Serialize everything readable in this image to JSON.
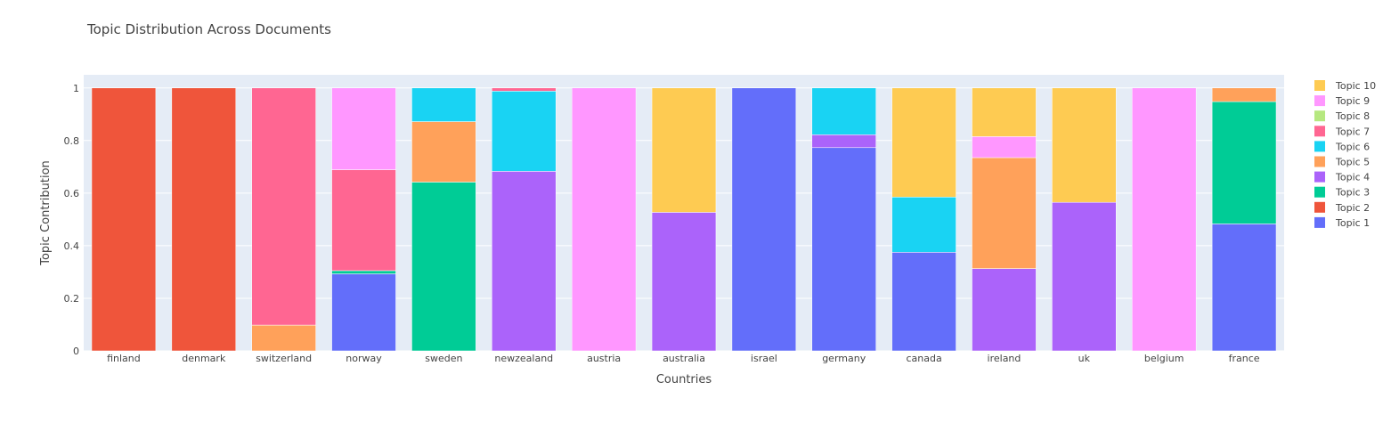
{
  "chart_data": {
    "type": "bar",
    "barmode": "stack",
    "title": "Topic Distribution Across Documents",
    "xlabel": "Countries",
    "ylabel": "Topic Contribution",
    "ylim": [
      0,
      1.05
    ],
    "y_ticks": [
      0,
      0.2,
      0.4,
      0.6,
      0.8,
      1
    ],
    "y_tick_labels": [
      "0",
      "0.2",
      "0.4",
      "0.6",
      "0.8",
      "1"
    ],
    "grid": true,
    "legend_position": "top-right",
    "categories": [
      "finland",
      "denmark",
      "switzerland",
      "norway",
      "sweden",
      "newzealand",
      "austria",
      "australia",
      "israel",
      "germany",
      "canada",
      "ireland",
      "uk",
      "belgium",
      "france"
    ],
    "series": [
      {
        "name": "Topic 1",
        "color": "#636efa",
        "values": [
          0,
          0,
          0,
          0.293,
          0,
          0,
          0,
          0,
          1.0,
          0.773,
          0.375,
          0,
          0,
          0,
          0.483
        ]
      },
      {
        "name": "Topic 2",
        "color": "#ef553b",
        "values": [
          1.0,
          1.0,
          0,
          0,
          0,
          0,
          0,
          0,
          0,
          0,
          0,
          0,
          0,
          0,
          0
        ]
      },
      {
        "name": "Topic 3",
        "color": "#00cc96",
        "values": [
          0,
          0,
          0,
          0.012,
          0.642,
          0,
          0,
          0,
          0,
          0,
          0,
          0,
          0,
          0,
          0.465
        ]
      },
      {
        "name": "Topic 4",
        "color": "#ab63fa",
        "values": [
          0,
          0,
          0,
          0,
          0,
          0.683,
          0,
          0.527,
          0,
          0.049,
          0,
          0.313,
          0.565,
          0,
          0
        ]
      },
      {
        "name": "Topic 5",
        "color": "#ffa15a",
        "values": [
          0,
          0,
          0.098,
          0,
          0.23,
          0,
          0,
          0,
          0,
          0,
          0,
          0.422,
          0,
          0,
          0.052
        ]
      },
      {
        "name": "Topic 6",
        "color": "#19d3f3",
        "values": [
          0,
          0,
          0,
          0,
          0.128,
          0.305,
          0,
          0,
          0,
          0.178,
          0.21,
          0,
          0,
          0,
          0
        ]
      },
      {
        "name": "Topic 7",
        "color": "#ff6692",
        "values": [
          0,
          0,
          0.902,
          0.384,
          0,
          0.012,
          0,
          0,
          0,
          0,
          0,
          0,
          0,
          0,
          0
        ]
      },
      {
        "name": "Topic 8",
        "color": "#b6e880",
        "values": [
          0,
          0,
          0,
          0,
          0,
          0,
          0,
          0,
          0,
          0,
          0,
          0,
          0,
          0,
          0
        ]
      },
      {
        "name": "Topic 9",
        "color": "#ff97ff",
        "values": [
          0,
          0,
          0,
          0.311,
          0,
          0,
          1.0,
          0,
          0,
          0,
          0,
          0.08,
          0,
          1.0,
          0
        ]
      },
      {
        "name": "Topic 10",
        "color": "#fecb52",
        "values": [
          0,
          0,
          0,
          0,
          0,
          0,
          0,
          0.473,
          0,
          0,
          0.415,
          0.185,
          0.435,
          0,
          0
        ]
      }
    ]
  },
  "colors": {
    "plot_background": "#e5ecf6",
    "grid": "#ffffff",
    "text": "#444444"
  }
}
